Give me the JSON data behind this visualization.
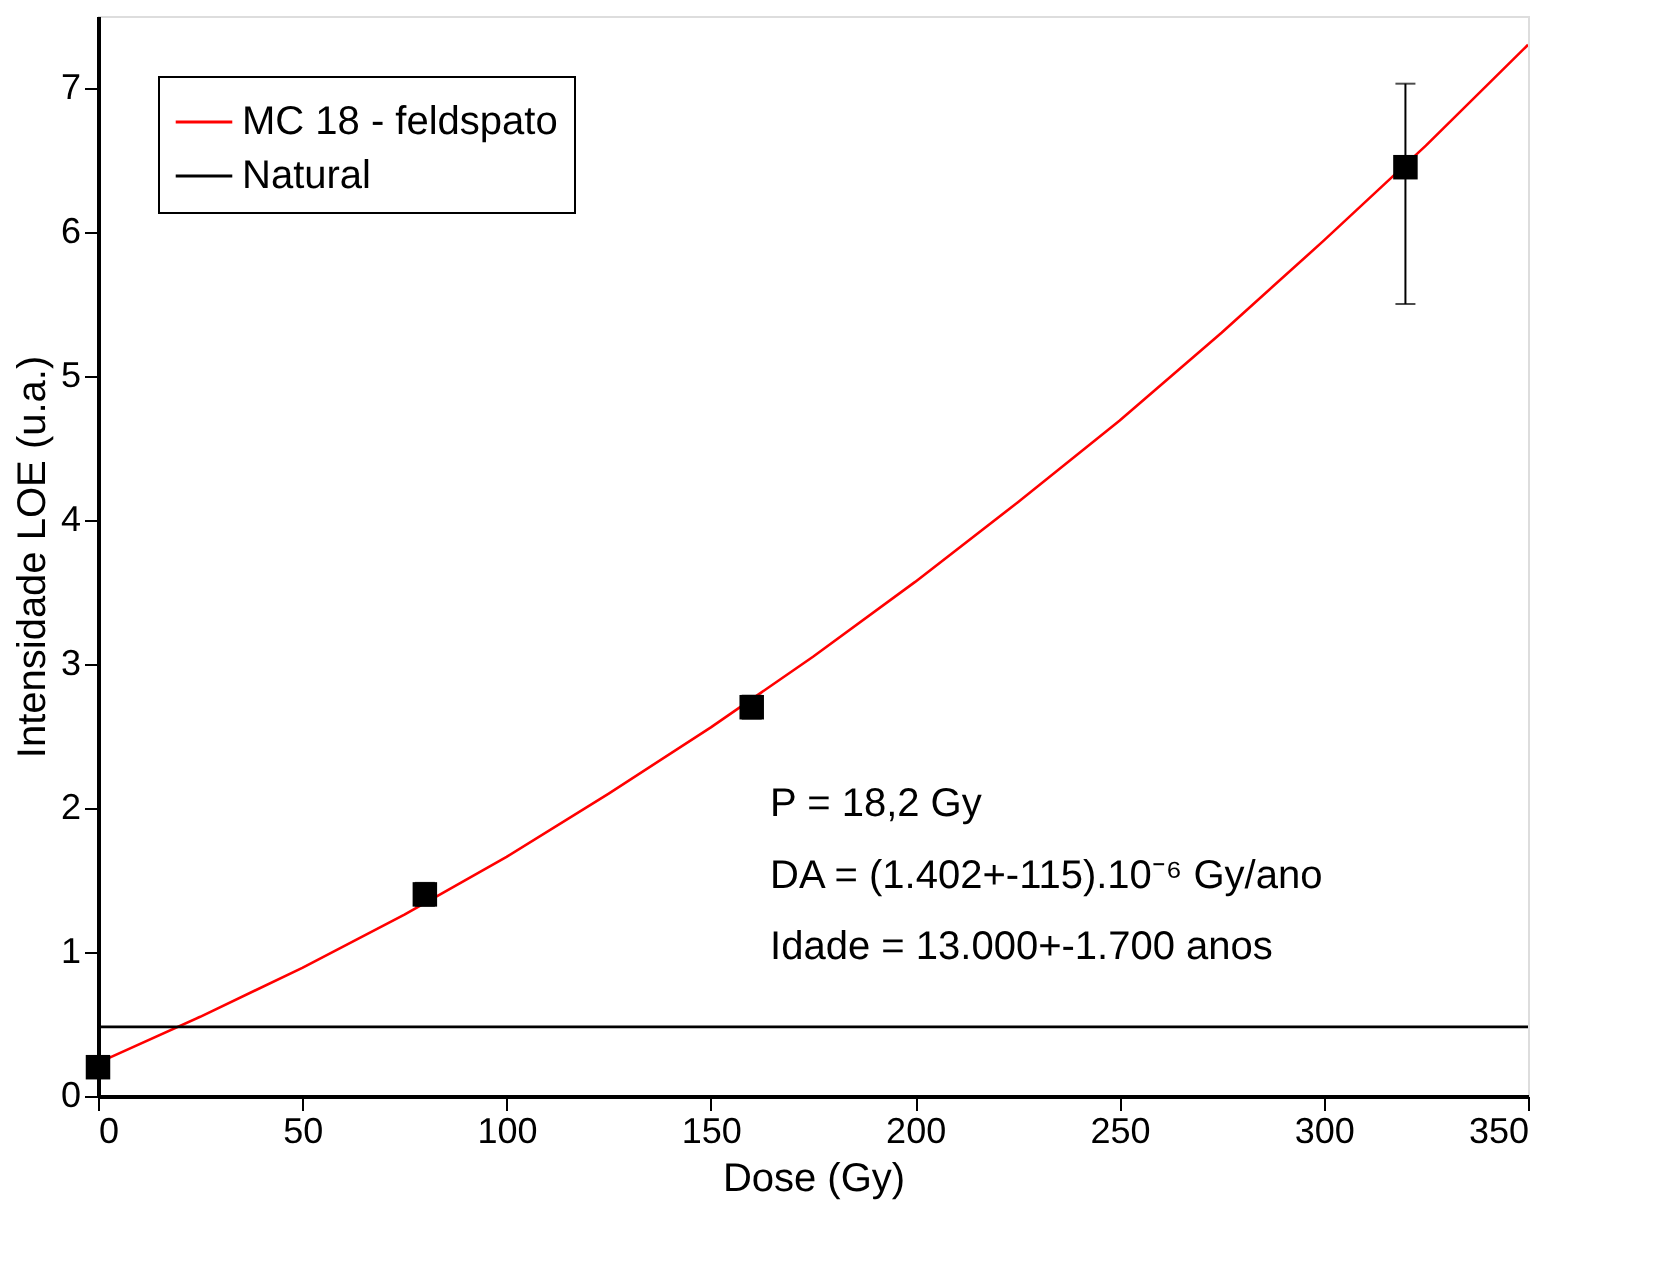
{
  "chart_data": {
    "type": "line",
    "xlabel": "Dose (Gy)",
    "ylabel": "Intensidade LOE (u.a.)",
    "xlim": [
      0,
      350
    ],
    "ylim": [
      0,
      7.5
    ],
    "xticks": [
      0,
      50,
      100,
      150,
      200,
      250,
      300,
      350
    ],
    "yticks": [
      0,
      1,
      2,
      3,
      4,
      5,
      6,
      7
    ],
    "grid": false,
    "legend": "top left",
    "series": [
      {
        "name": "MC 18 - feldspato",
        "color": "#ff0000",
        "x": [
          0,
          25,
          50,
          75,
          100,
          125,
          150,
          175,
          200,
          225,
          250,
          275,
          300,
          325,
          350
        ],
        "values": [
          0.23,
          0.55,
          0.89,
          1.26,
          1.66,
          2.1,
          2.56,
          3.05,
          3.57,
          4.12,
          4.69,
          5.3,
          5.94,
          6.6,
          7.3
        ]
      },
      {
        "name": "Natural",
        "color": "#000000",
        "x": [
          0,
          350
        ],
        "values": [
          0.48,
          0.48
        ]
      },
      {
        "type": "scatter",
        "color": "#000000",
        "marker": "square",
        "x": [
          0,
          80,
          160,
          320
        ],
        "values": [
          0.2,
          1.4,
          2.7,
          6.45
        ],
        "errors": [
          null,
          0.08,
          0.08,
          [
            5.5,
            7.03
          ]
        ]
      }
    ],
    "annotations": [
      "P = 18,2 Gy",
      "DA = (1.402+-115).10⁻⁶ Gy/ano",
      "Idade = 13.000+-1.700 anos"
    ]
  }
}
